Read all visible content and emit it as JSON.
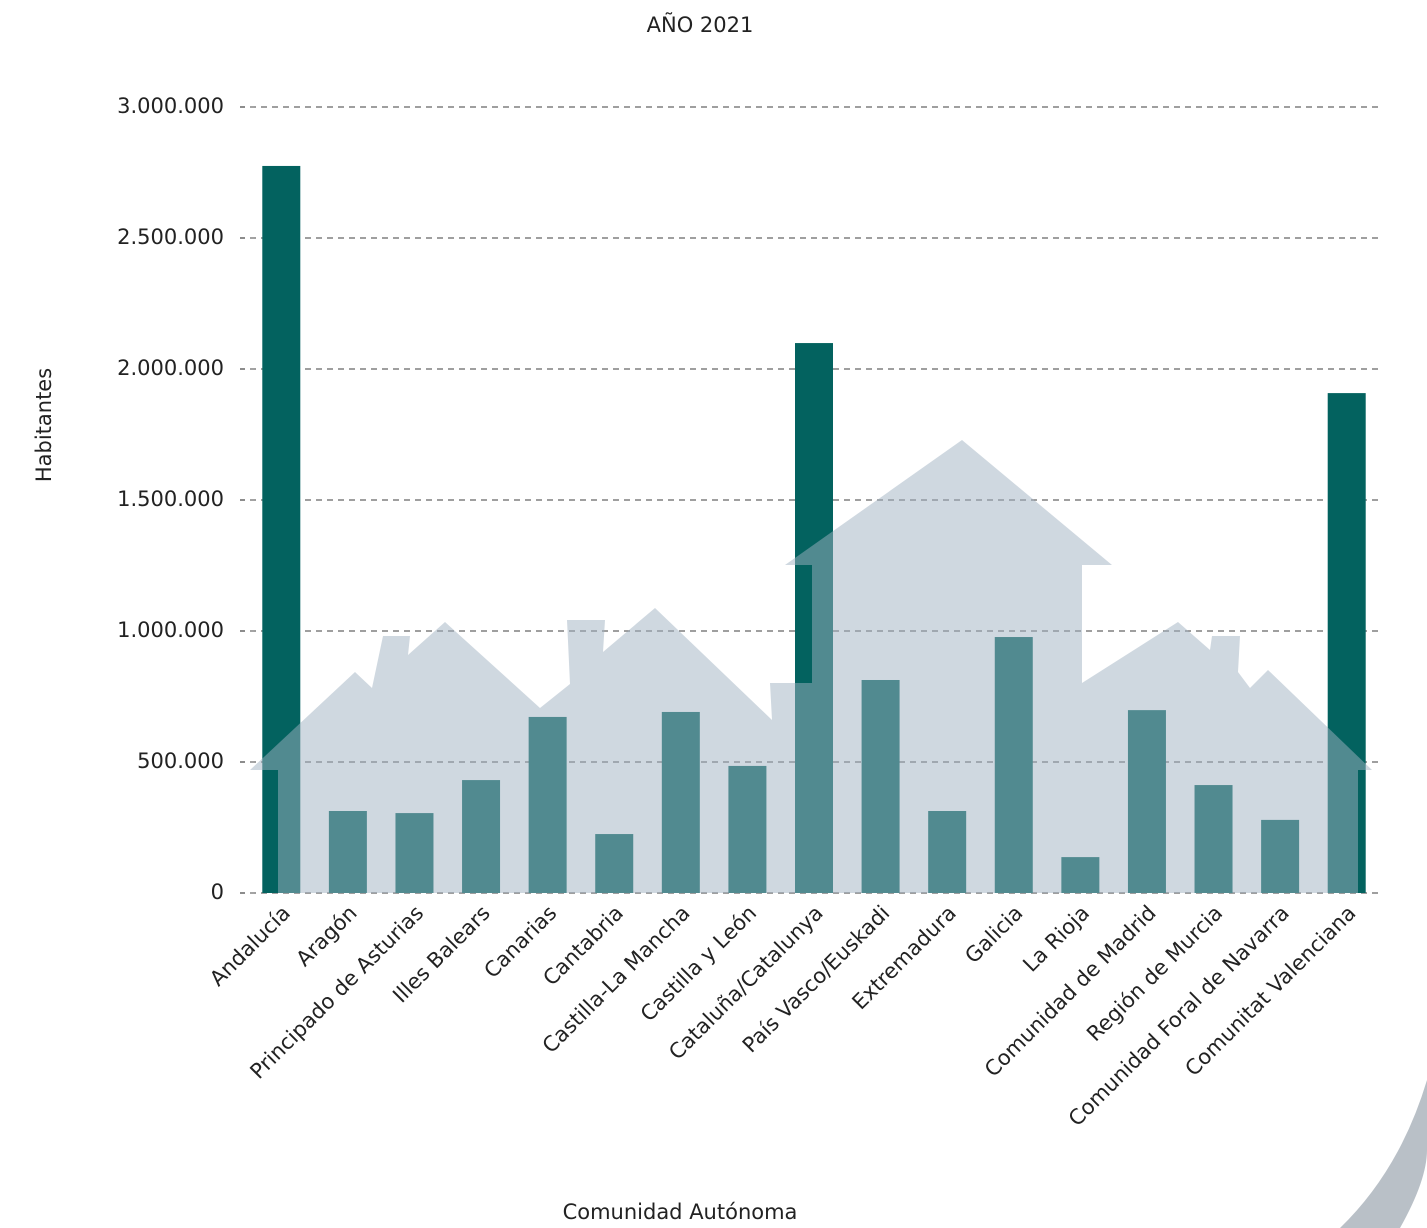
{
  "chart_data": {
    "type": "bar",
    "title": "AÑO 2021",
    "x_label": "Comunidad Autónoma",
    "y_label": "Habitantes",
    "categories": [
      "Andalucía",
      "Aragón",
      "Principado de Asturias",
      "Illes Balears",
      "Canarias",
      "Cantabria",
      "Castilla-La Mancha",
      "Castilla y León",
      "Cataluña/Catalunya",
      "País Vasco/Euskadi",
      "Extremadura",
      "Galicia",
      "La Rioja",
      "Comunidad de Madrid",
      "Región de Murcia",
      "Comunidad Foral de Navarra",
      "Comunitat Valenciana"
    ],
    "values": [
      2775000,
      313000,
      305000,
      431000,
      672000,
      225000,
      691000,
      485000,
      2099000,
      813000,
      313000,
      977000,
      137000,
      698000,
      412000,
      279000,
      1908000
    ],
    "color": "#03625f",
    "ylim": [
      0,
      3000000
    ],
    "yticks": [
      0,
      {
        "value": 500000,
        "label": "500.000"
      },
      {
        "value": 1000000,
        "label": "1.000.000"
      },
      {
        "value": 1500000,
        "label": "1.500.000"
      },
      {
        "value": 2000000,
        "label": "2.000.000"
      },
      {
        "value": 2500000,
        "label": "2.500.000"
      },
      {
        "value": 3000000,
        "label": "3.000.000"
      }
    ],
    "grid": true
  }
}
